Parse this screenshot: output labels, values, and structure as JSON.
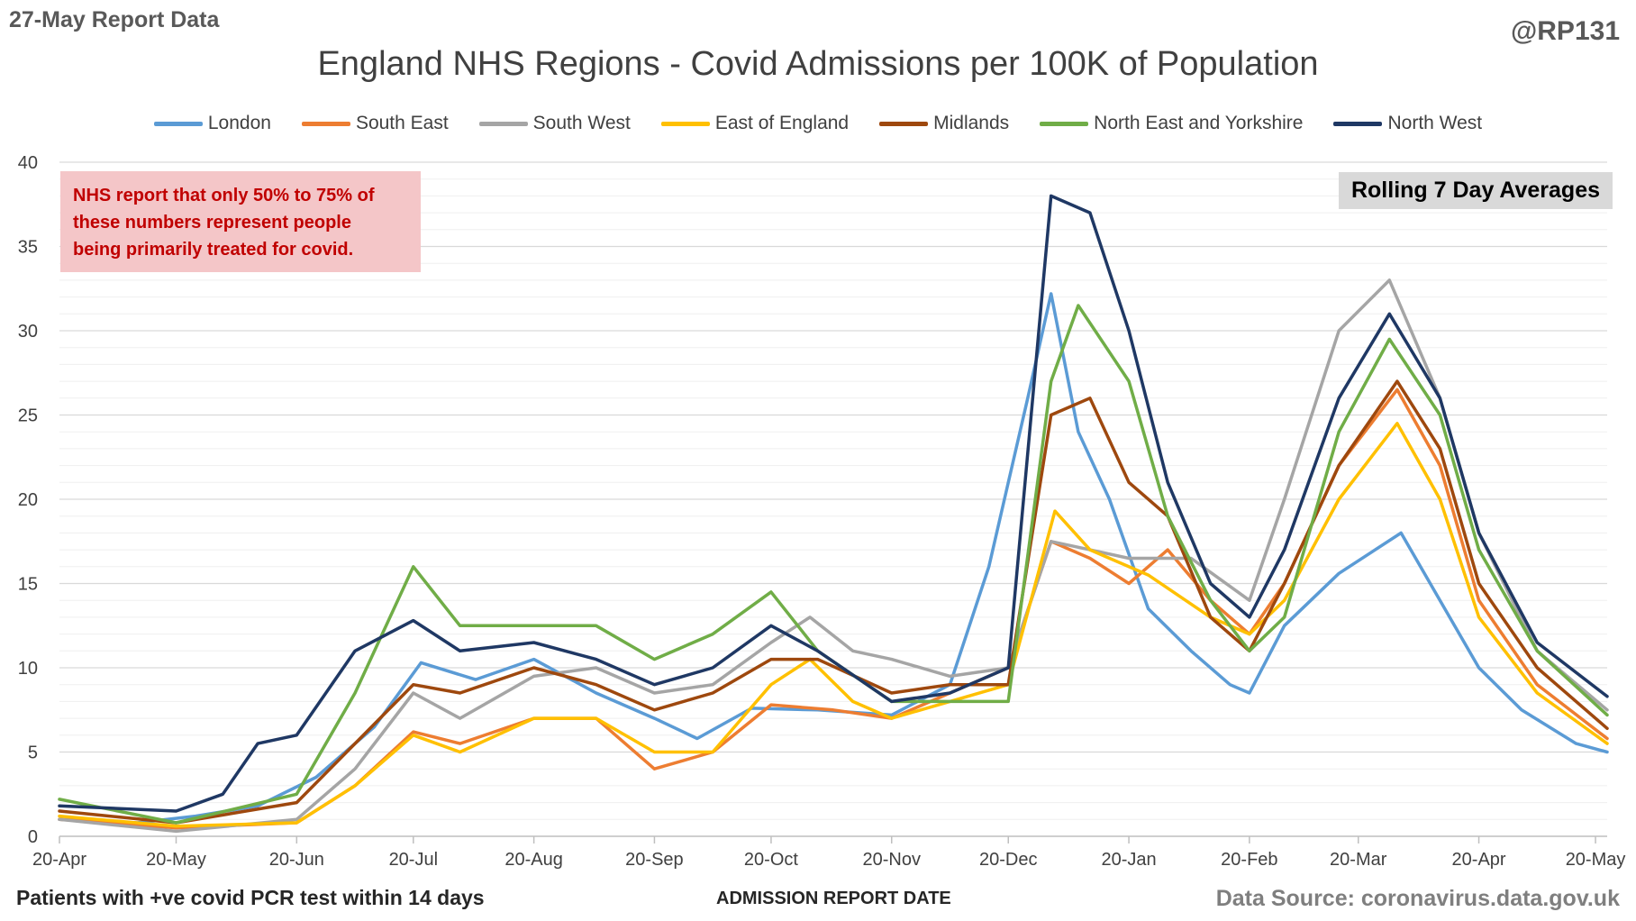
{
  "header": {
    "report_date": "27-May Report Data",
    "handle": "@RP131"
  },
  "note": {
    "lines": [
      "NHS report that only 50% to 75% of",
      "these numbers represent people",
      "being primarily treated for covid."
    ]
  },
  "badge": "Rolling 7 Day Averages",
  "footer": {
    "left": "Patients with +ve covid PCR test within 14 days",
    "center": "ADMISSION REPORT DATE",
    "right": "Data Source: coronavirus.data.gov.uk"
  },
  "colors": {
    "grid": "#d9d9d9",
    "axis": "#bfbfbf",
    "note_bg": "#f4c6c8",
    "note_text": "#c00000"
  },
  "chart_data": {
    "type": "line",
    "title": "England NHS Regions - Covid Admissions per 100K of Population",
    "xlabel": "ADMISSION REPORT DATE",
    "ylabel": "",
    "ylim": [
      0,
      40
    ],
    "yticks": [
      0,
      5,
      10,
      15,
      20,
      25,
      30,
      35,
      40
    ],
    "grid": "horizontal",
    "legend_position": "top",
    "x_ticks": [
      {
        "label": "20-Apr",
        "x": "2021-04-20"
      },
      {
        "label": "20-May",
        "x": "2021-05-20"
      },
      {
        "label": "20-Jun",
        "x": "2021-06-20"
      },
      {
        "label": "20-Jul",
        "x": "2021-07-20"
      },
      {
        "label": "20-Aug",
        "x": "2021-08-20"
      },
      {
        "label": "20-Sep",
        "x": "2021-09-20"
      },
      {
        "label": "20-Oct",
        "x": "2021-10-20"
      },
      {
        "label": "20-Nov",
        "x": "2021-11-20"
      },
      {
        "label": "20-Dec",
        "x": "2021-12-20"
      },
      {
        "label": "20-Jan",
        "x": "2022-01-20"
      },
      {
        "label": "20-Feb",
        "x": "2022-02-20"
      },
      {
        "label": "20-Mar",
        "x": "2022-03-20"
      },
      {
        "label": "20-Apr",
        "x": "2022-04-20"
      },
      {
        "label": "20-May",
        "x": "2022-05-20"
      }
    ],
    "x_range": [
      "2021-04-20",
      "2022-05-23"
    ],
    "series": [
      {
        "name": "London",
        "color": "#5b9bd5",
        "points": [
          [
            "2021-04-20",
            1.0
          ],
          [
            "2021-05-10",
            0.8
          ],
          [
            "2021-05-25",
            1.2
          ],
          [
            "2021-06-10",
            1.8
          ],
          [
            "2021-06-25",
            3.5
          ],
          [
            "2021-07-10",
            6.5
          ],
          [
            "2021-07-22",
            10.3
          ],
          [
            "2021-08-05",
            9.3
          ],
          [
            "2021-08-20",
            10.5
          ],
          [
            "2021-09-05",
            8.5
          ],
          [
            "2021-09-20",
            7.0
          ],
          [
            "2021-10-01",
            5.8
          ],
          [
            "2021-10-15",
            7.6
          ],
          [
            "2021-11-01",
            7.5
          ],
          [
            "2021-11-20",
            7.2
          ],
          [
            "2021-12-05",
            9.0
          ],
          [
            "2021-12-15",
            16.0
          ],
          [
            "2021-12-25",
            26.0
          ],
          [
            "2021-12-31",
            32.2
          ],
          [
            "2022-01-07",
            24.0
          ],
          [
            "2022-01-15",
            20.0
          ],
          [
            "2022-01-25",
            13.5
          ],
          [
            "2022-02-05",
            11.0
          ],
          [
            "2022-02-15",
            9.0
          ],
          [
            "2022-02-20",
            8.5
          ],
          [
            "2022-03-01",
            12.5
          ],
          [
            "2022-03-15",
            15.6
          ],
          [
            "2022-03-31",
            18.0
          ],
          [
            "2022-04-10",
            14.0
          ],
          [
            "2022-04-20",
            10.0
          ],
          [
            "2022-05-01",
            7.5
          ],
          [
            "2022-05-15",
            5.5
          ],
          [
            "2022-05-23",
            5.0
          ]
        ]
      },
      {
        "name": "South East",
        "color": "#ed7d31",
        "points": [
          [
            "2021-04-20",
            1.0
          ],
          [
            "2021-05-20",
            0.5
          ],
          [
            "2021-06-20",
            0.8
          ],
          [
            "2021-07-05",
            3.0
          ],
          [
            "2021-07-20",
            6.2
          ],
          [
            "2021-08-01",
            5.5
          ],
          [
            "2021-08-20",
            7.0
          ],
          [
            "2021-09-05",
            7.0
          ],
          [
            "2021-09-20",
            4.0
          ],
          [
            "2021-10-05",
            5.0
          ],
          [
            "2021-10-20",
            7.8
          ],
          [
            "2021-11-05",
            7.5
          ],
          [
            "2021-11-20",
            7.0
          ],
          [
            "2021-12-05",
            8.5
          ],
          [
            "2021-12-20",
            10.0
          ],
          [
            "2021-12-31",
            17.5
          ],
          [
            "2022-01-10",
            16.5
          ],
          [
            "2022-01-20",
            15.0
          ],
          [
            "2022-01-30",
            17.0
          ],
          [
            "2022-02-10",
            14.0
          ],
          [
            "2022-02-20",
            12.0
          ],
          [
            "2022-03-01",
            15.0
          ],
          [
            "2022-03-15",
            22.0
          ],
          [
            "2022-03-30",
            26.5
          ],
          [
            "2022-04-10",
            22.0
          ],
          [
            "2022-04-20",
            14.0
          ],
          [
            "2022-05-05",
            9.0
          ],
          [
            "2022-05-23",
            5.8
          ]
        ]
      },
      {
        "name": "South West",
        "color": "#a5a5a5",
        "points": [
          [
            "2021-04-20",
            1.0
          ],
          [
            "2021-05-20",
            0.3
          ],
          [
            "2021-06-20",
            1.0
          ],
          [
            "2021-07-05",
            4.0
          ],
          [
            "2021-07-20",
            8.5
          ],
          [
            "2021-08-01",
            7.0
          ],
          [
            "2021-08-20",
            9.5
          ],
          [
            "2021-09-05",
            10.0
          ],
          [
            "2021-09-20",
            8.5
          ],
          [
            "2021-10-05",
            9.0
          ],
          [
            "2021-10-20",
            11.5
          ],
          [
            "2021-10-30",
            13.0
          ],
          [
            "2021-11-10",
            11.0
          ],
          [
            "2021-11-20",
            10.5
          ],
          [
            "2021-12-05",
            9.5
          ],
          [
            "2021-12-20",
            10.0
          ],
          [
            "2021-12-31",
            17.5
          ],
          [
            "2022-01-10",
            17.0
          ],
          [
            "2022-01-20",
            16.5
          ],
          [
            "2022-02-05",
            16.5
          ],
          [
            "2022-02-20",
            14.0
          ],
          [
            "2022-03-01",
            20.0
          ],
          [
            "2022-03-15",
            30.0
          ],
          [
            "2022-03-28",
            33.0
          ],
          [
            "2022-04-10",
            26.0
          ],
          [
            "2022-04-20",
            18.0
          ],
          [
            "2022-05-05",
            11.0
          ],
          [
            "2022-05-23",
            7.5
          ]
        ]
      },
      {
        "name": "East of England",
        "color": "#ffc000",
        "points": [
          [
            "2021-04-20",
            1.2
          ],
          [
            "2021-05-20",
            0.6
          ],
          [
            "2021-06-20",
            0.8
          ],
          [
            "2021-07-05",
            3.0
          ],
          [
            "2021-07-20",
            6.0
          ],
          [
            "2021-08-01",
            5.0
          ],
          [
            "2021-08-20",
            7.0
          ],
          [
            "2021-09-05",
            7.0
          ],
          [
            "2021-09-20",
            5.0
          ],
          [
            "2021-10-05",
            5.0
          ],
          [
            "2021-10-20",
            9.0
          ],
          [
            "2021-10-30",
            10.5
          ],
          [
            "2021-11-10",
            8.0
          ],
          [
            "2021-11-20",
            7.0
          ],
          [
            "2021-12-05",
            8.0
          ],
          [
            "2021-12-20",
            9.0
          ],
          [
            "2022-01-01",
            19.3
          ],
          [
            "2022-01-10",
            17.0
          ],
          [
            "2022-01-25",
            15.5
          ],
          [
            "2022-02-10",
            13.0
          ],
          [
            "2022-02-20",
            12.0
          ],
          [
            "2022-03-01",
            14.0
          ],
          [
            "2022-03-15",
            20.0
          ],
          [
            "2022-03-30",
            24.5
          ],
          [
            "2022-04-10",
            20.0
          ],
          [
            "2022-04-20",
            13.0
          ],
          [
            "2022-05-05",
            8.5
          ],
          [
            "2022-05-23",
            5.5
          ]
        ]
      },
      {
        "name": "Midlands",
        "color": "#9e480e",
        "points": [
          [
            "2021-04-20",
            1.5
          ],
          [
            "2021-05-20",
            0.8
          ],
          [
            "2021-06-20",
            2.0
          ],
          [
            "2021-07-05",
            5.5
          ],
          [
            "2021-07-20",
            9.0
          ],
          [
            "2021-08-01",
            8.5
          ],
          [
            "2021-08-20",
            10.0
          ],
          [
            "2021-09-05",
            9.0
          ],
          [
            "2021-09-20",
            7.5
          ],
          [
            "2021-10-05",
            8.5
          ],
          [
            "2021-10-20",
            10.5
          ],
          [
            "2021-11-01",
            10.5
          ],
          [
            "2021-11-20",
            8.5
          ],
          [
            "2021-12-05",
            9.0
          ],
          [
            "2021-12-20",
            9.0
          ],
          [
            "2021-12-31",
            25.0
          ],
          [
            "2022-01-10",
            26.0
          ],
          [
            "2022-01-20",
            21.0
          ],
          [
            "2022-01-30",
            19.0
          ],
          [
            "2022-02-10",
            13.0
          ],
          [
            "2022-02-20",
            11.0
          ],
          [
            "2022-03-01",
            15.0
          ],
          [
            "2022-03-15",
            22.0
          ],
          [
            "2022-03-30",
            27.0
          ],
          [
            "2022-04-10",
            23.0
          ],
          [
            "2022-04-20",
            15.0
          ],
          [
            "2022-05-05",
            10.0
          ],
          [
            "2022-05-23",
            6.4
          ]
        ]
      },
      {
        "name": "North East and Yorkshire",
        "color": "#70ad47",
        "points": [
          [
            "2021-04-20",
            2.2
          ],
          [
            "2021-05-20",
            0.8
          ],
          [
            "2021-06-20",
            2.5
          ],
          [
            "2021-07-05",
            8.5
          ],
          [
            "2021-07-20",
            16.0
          ],
          [
            "2021-08-01",
            12.5
          ],
          [
            "2021-08-20",
            12.5
          ],
          [
            "2021-09-05",
            12.5
          ],
          [
            "2021-09-20",
            10.5
          ],
          [
            "2021-10-05",
            12.0
          ],
          [
            "2021-10-20",
            14.5
          ],
          [
            "2021-11-01",
            11.0
          ],
          [
            "2021-11-20",
            8.0
          ],
          [
            "2021-12-05",
            8.0
          ],
          [
            "2021-12-20",
            8.0
          ],
          [
            "2021-12-31",
            27.0
          ],
          [
            "2022-01-07",
            31.5
          ],
          [
            "2022-01-20",
            27.0
          ],
          [
            "2022-01-30",
            19.0
          ],
          [
            "2022-02-10",
            14.0
          ],
          [
            "2022-02-20",
            11.0
          ],
          [
            "2022-03-01",
            13.0
          ],
          [
            "2022-03-15",
            24.0
          ],
          [
            "2022-03-28",
            29.5
          ],
          [
            "2022-04-10",
            25.0
          ],
          [
            "2022-04-20",
            17.0
          ],
          [
            "2022-05-05",
            11.0
          ],
          [
            "2022-05-23",
            7.2
          ]
        ]
      },
      {
        "name": "North West",
        "color": "#1f3864",
        "points": [
          [
            "2021-04-20",
            1.8
          ],
          [
            "2021-05-20",
            1.5
          ],
          [
            "2021-06-01",
            2.5
          ],
          [
            "2021-06-10",
            5.5
          ],
          [
            "2021-06-20",
            6.0
          ],
          [
            "2021-07-05",
            11.0
          ],
          [
            "2021-07-20",
            12.8
          ],
          [
            "2021-08-01",
            11.0
          ],
          [
            "2021-08-20",
            11.5
          ],
          [
            "2021-09-05",
            10.5
          ],
          [
            "2021-09-20",
            9.0
          ],
          [
            "2021-10-05",
            10.0
          ],
          [
            "2021-10-20",
            12.5
          ],
          [
            "2021-11-01",
            11.0
          ],
          [
            "2021-11-20",
            8.0
          ],
          [
            "2021-12-05",
            8.5
          ],
          [
            "2021-12-20",
            10.0
          ],
          [
            "2021-12-31",
            38.0
          ],
          [
            "2022-01-10",
            37.0
          ],
          [
            "2022-01-20",
            30.0
          ],
          [
            "2022-01-30",
            21.0
          ],
          [
            "2022-02-10",
            15.0
          ],
          [
            "2022-02-20",
            13.0
          ],
          [
            "2022-03-01",
            17.0
          ],
          [
            "2022-03-15",
            26.0
          ],
          [
            "2022-03-28",
            31.0
          ],
          [
            "2022-04-10",
            26.0
          ],
          [
            "2022-04-20",
            18.0
          ],
          [
            "2022-05-05",
            11.5
          ],
          [
            "2022-05-23",
            8.3
          ]
        ]
      }
    ]
  }
}
